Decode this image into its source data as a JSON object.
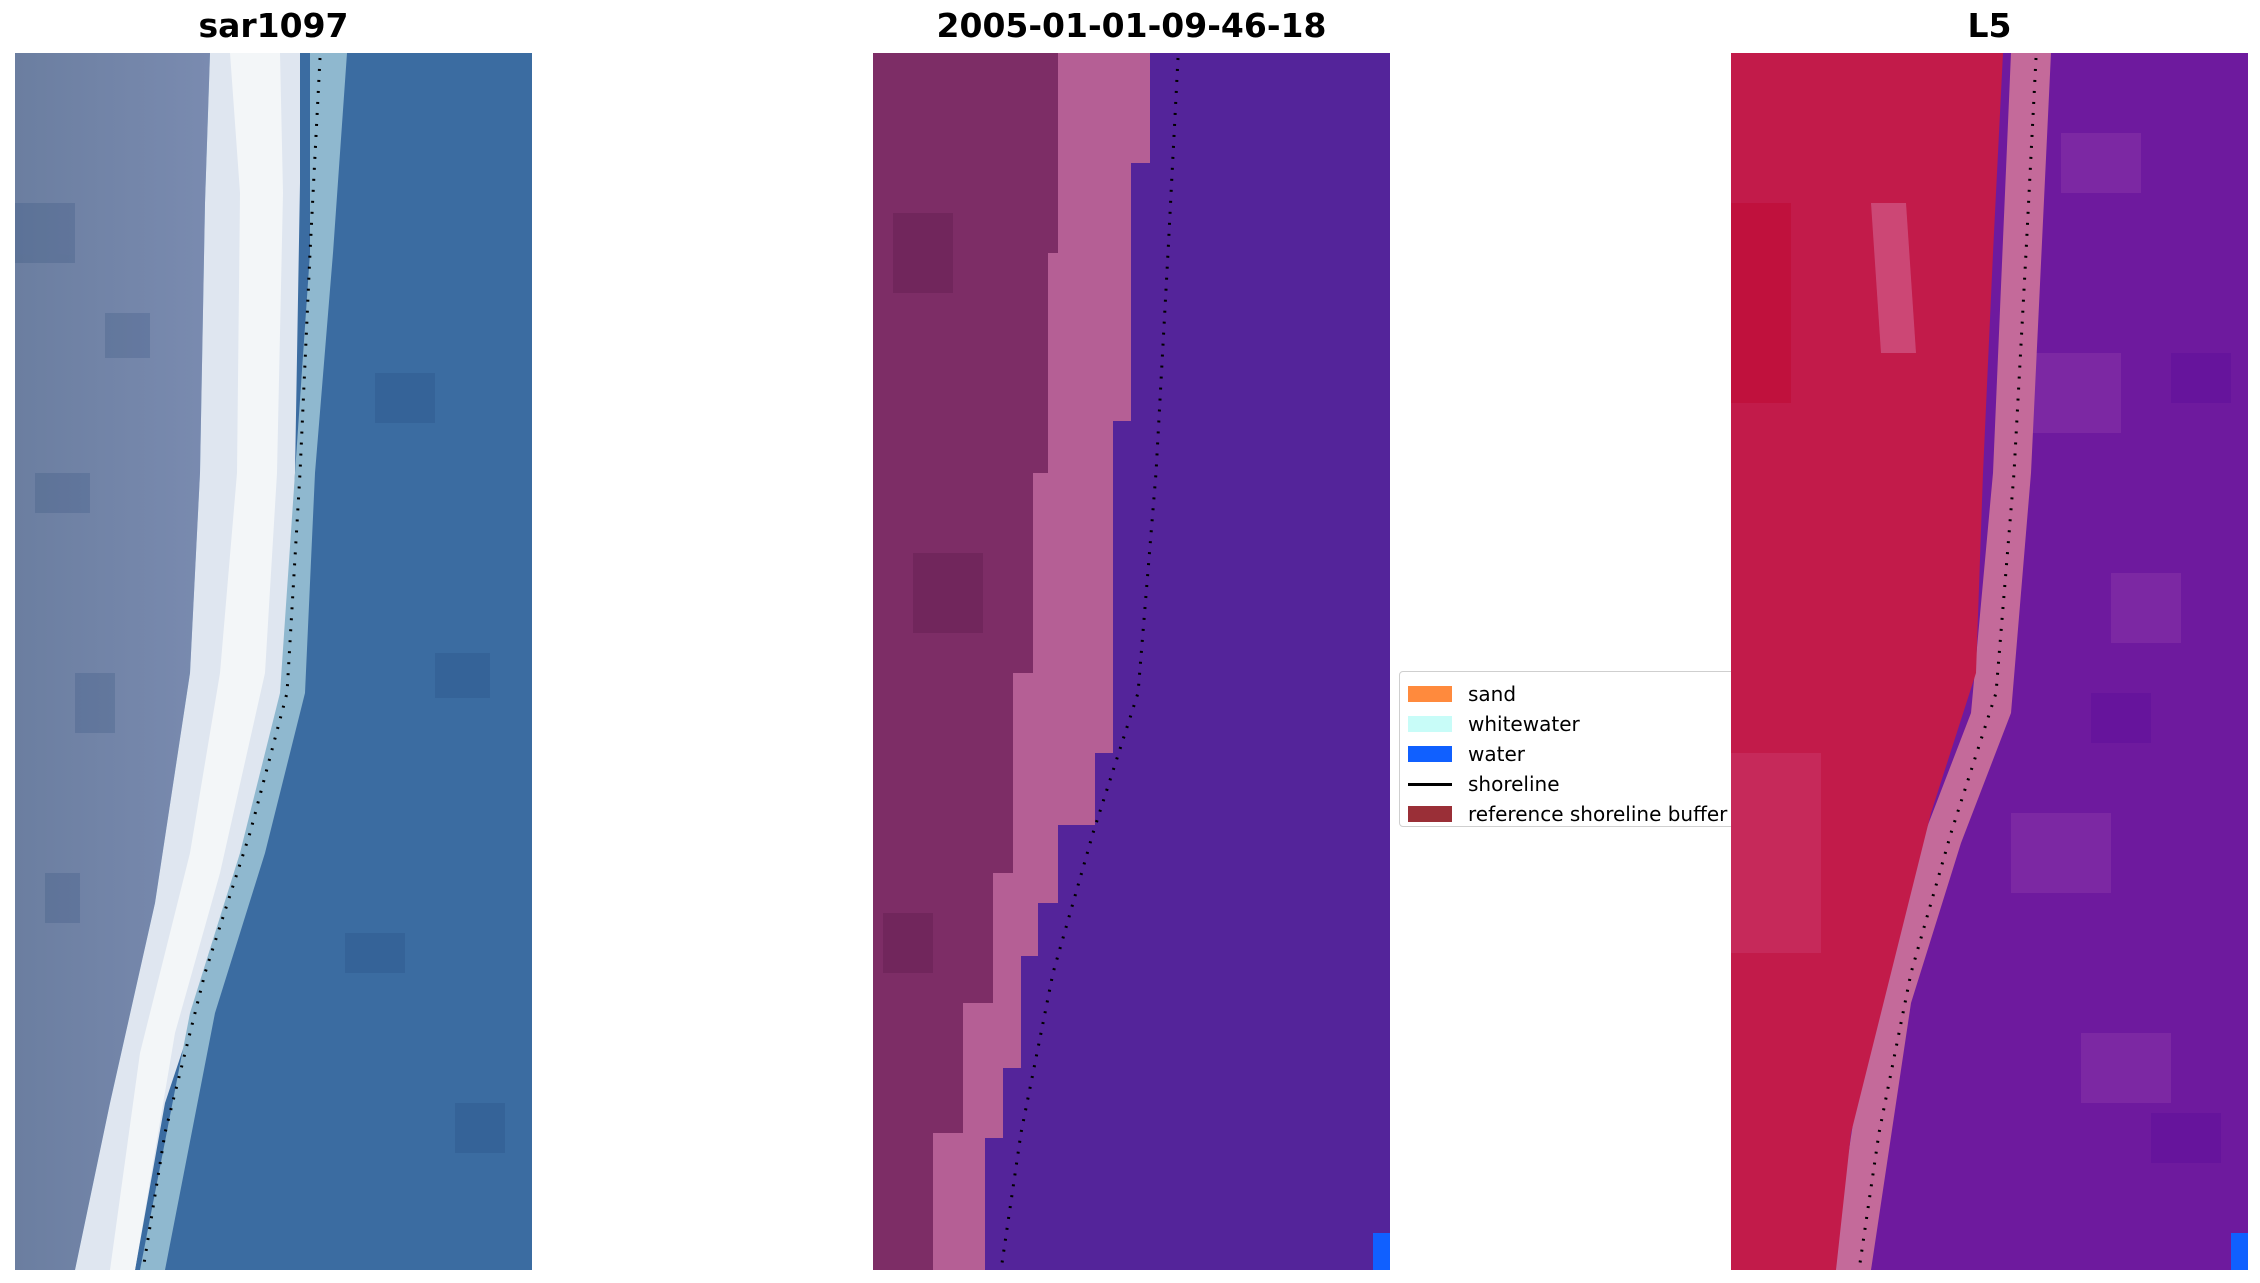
{
  "panels": [
    {
      "title": "sar1097"
    },
    {
      "title": "2005-01-01-09-46-18"
    },
    {
      "title": "L5"
    }
  ],
  "legend": {
    "items": [
      {
        "label": "sand",
        "color": "#ff8a3d",
        "kind": "patch"
      },
      {
        "label": "whitewater",
        "color": "#c8fcf8",
        "kind": "patch"
      },
      {
        "label": "water",
        "color": "#1060ff",
        "kind": "patch"
      },
      {
        "label": "shoreline",
        "color": "#000000",
        "kind": "line"
      },
      {
        "label": "reference shoreline buffer",
        "color": "#9a2f37",
        "kind": "patch"
      }
    ]
  },
  "colors": {
    "rgb_sand": "#6c7fa0",
    "rgb_water": "#3a6aa0",
    "rgb_foam": "#eef2f4",
    "class_land": "#7d2d66",
    "class_land_light": "#b55f95",
    "class_water": "#54249a",
    "index_land": "#c21b4a",
    "index_water": "#6e1a9e",
    "shoreline_dots": "#000000"
  }
}
